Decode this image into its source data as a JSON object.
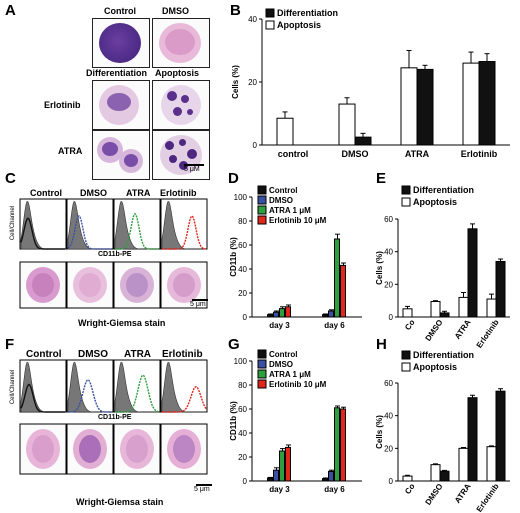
{
  "panels": {
    "A": "A",
    "B": "B",
    "C": "C",
    "D": "D",
    "E": "E",
    "F": "F",
    "G": "G",
    "H": "H"
  },
  "panel_a": {
    "col_control": "Control",
    "col_dmso": "DMSO",
    "col_differentiation": "Differentiation",
    "col_apoptosis": "Apoptosis",
    "row_erlotinib": "Erlotinib",
    "row_atra": "ATRA",
    "scale": "5 μM"
  },
  "flow_c": {
    "titles": [
      "Control",
      "DMSO",
      "ATRA",
      "Erlotinib"
    ],
    "ylabel": "Cell/Channel",
    "xlabel": "CD11b-PE",
    "stain": "Wright-Giemsa stain",
    "scale": "5 μm"
  },
  "flow_f": {
    "titles": [
      "Control",
      "DMSO",
      "ATRA",
      "Erlotinib"
    ],
    "ylabel": "Cell/Channel",
    "xlabel": "CD11b-PE",
    "stain": "Wright-Giemsa stain",
    "scale": "5 μm"
  },
  "colors": {
    "black": "#111111",
    "white": "#ffffff",
    "blue": "#3a51a3",
    "green": "#2e9e3e",
    "red": "#e1261c",
    "gray_hist": "#777777"
  },
  "chart_data": [
    {
      "panel": "B",
      "type": "bar",
      "categories": [
        "control",
        "DMSO",
        "ATRA",
        "Erlotinib"
      ],
      "series": [
        {
          "name": "Differentiation",
          "color": "#111111",
          "values": [
            0,
            2.5,
            24,
            26.5
          ],
          "errors": [
            0,
            1.2,
            1.3,
            2.5
          ]
        },
        {
          "name": "Apoptosis",
          "color": "#ffffff",
          "values": [
            8.5,
            13,
            24.5,
            26
          ],
          "errors": [
            2,
            2,
            5.5,
            3.5
          ]
        }
      ],
      "ylabel": "Cells (%)",
      "ylim": [
        0,
        40
      ],
      "yticks": [
        0,
        20,
        40
      ],
      "legend": "top-left"
    },
    {
      "panel": "D",
      "type": "bar",
      "categories": [
        "day 3",
        "day 6"
      ],
      "series": [
        {
          "name": "Control",
          "color": "#111111",
          "values": [
            2,
            2
          ],
          "errors": [
            0.5,
            0.5
          ]
        },
        {
          "name": "DMSO",
          "color": "#3a51a3",
          "values": [
            4,
            5
          ],
          "errors": [
            1,
            1
          ]
        },
        {
          "name": "ATRA 1 μM",
          "color": "#2e9e3e",
          "values": [
            7,
            65
          ],
          "errors": [
            1.5,
            4
          ]
        },
        {
          "name": "Erlotinib 10 μM",
          "color": "#e1261c",
          "values": [
            8.5,
            43
          ],
          "errors": [
            1.5,
            2
          ]
        }
      ],
      "ylabel": "CD11b (%)",
      "ylim": [
        0,
        100
      ],
      "yticks": [
        0,
        20,
        40,
        60,
        80,
        100
      ],
      "legend": "top-left"
    },
    {
      "panel": "E",
      "type": "bar",
      "categories": [
        "Co",
        "DMSO",
        "ATRA",
        "Erlotinib"
      ],
      "series": [
        {
          "name": "Differentiation",
          "color": "#111111",
          "values": [
            0,
            2.5,
            54,
            34
          ],
          "errors": [
            0,
            1,
            3,
            1.5
          ]
        },
        {
          "name": "Apoptosis",
          "color": "#ffffff",
          "values": [
            5,
            9.5,
            12,
            11
          ],
          "errors": [
            1.5,
            0.5,
            3,
            3
          ]
        }
      ],
      "ylabel": "Cells (%)",
      "ylim": [
        0,
        60
      ],
      "yticks": [
        0,
        20,
        40,
        60
      ],
      "legend": "top-left"
    },
    {
      "panel": "G",
      "type": "bar",
      "categories": [
        "day 3",
        "day 6"
      ],
      "series": [
        {
          "name": "Control",
          "color": "#111111",
          "values": [
            2.5,
            2
          ],
          "errors": [
            0.5,
            0.5
          ]
        },
        {
          "name": "DMSO",
          "color": "#3a51a3",
          "values": [
            9,
            8
          ],
          "errors": [
            2,
            1
          ]
        },
        {
          "name": "ATRA 1 μM",
          "color": "#2e9e3e",
          "values": [
            25,
            61
          ],
          "errors": [
            2,
            1.5
          ]
        },
        {
          "name": "Erlotinib 10 μM",
          "color": "#e1261c",
          "values": [
            28,
            60
          ],
          "errors": [
            2,
            1.5
          ]
        }
      ],
      "ylabel": "CD11b (%)",
      "ylim": [
        0,
        100
      ],
      "yticks": [
        0,
        20,
        40,
        60,
        80,
        100
      ],
      "legend": "top-left"
    },
    {
      "panel": "H",
      "type": "bar",
      "categories": [
        "Co",
        "DMSO",
        "ATRA",
        "Erlotinib"
      ],
      "series": [
        {
          "name": "Differentiation",
          "color": "#111111",
          "values": [
            0,
            6,
            51,
            55
          ],
          "errors": [
            0,
            0.5,
            1.5,
            1.5
          ]
        },
        {
          "name": "Apoptosis",
          "color": "#ffffff",
          "values": [
            3,
            10,
            20,
            21
          ],
          "errors": [
            0.5,
            0.5,
            0.5,
            0.5
          ]
        }
      ],
      "ylabel": "Cells (%)",
      "ylim": [
        0,
        60
      ],
      "yticks": [
        0,
        20,
        40,
        60
      ],
      "legend": "top-left"
    }
  ]
}
